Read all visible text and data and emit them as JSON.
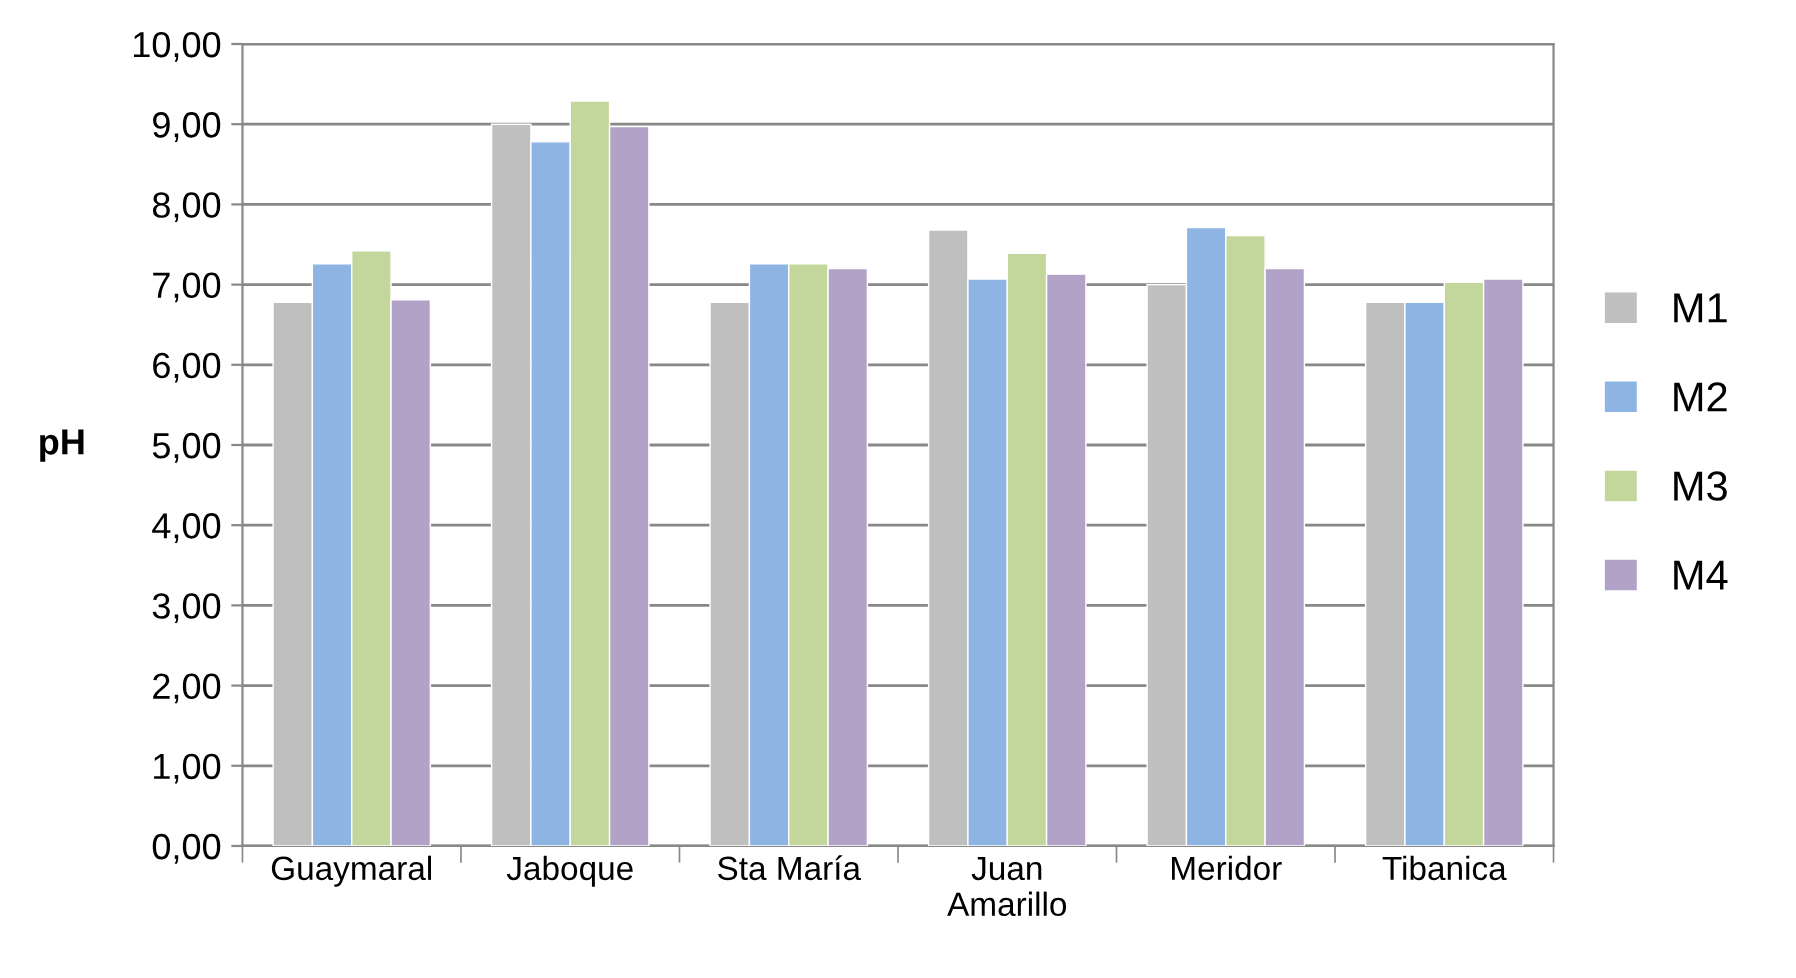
{
  "chart_data": {
    "type": "bar",
    "ylabel": "pH",
    "categories": [
      "Guaymaral",
      "Jaboque",
      "Sta María",
      "Juan Amarillo",
      "Meridor",
      "Tibanica"
    ],
    "series": [
      {
        "name": "M1",
        "color": "#bfbfbf",
        "values": [
          6.78,
          9.0,
          6.78,
          7.68,
          7.0,
          6.78
        ]
      },
      {
        "name": "M2",
        "color": "#8eb4e3",
        "values": [
          7.26,
          8.78,
          7.26,
          7.07,
          7.71,
          6.78
        ]
      },
      {
        "name": "M3",
        "color": "#c3d69b",
        "values": [
          7.42,
          9.29,
          7.26,
          7.39,
          7.61,
          7.03
        ]
      },
      {
        "name": "M4",
        "color": "#b3a2c7",
        "values": [
          6.81,
          8.97,
          7.2,
          7.13,
          7.2,
          7.07
        ]
      }
    ],
    "ylim": [
      0,
      10
    ],
    "yticks": [
      {
        "value": 0,
        "label": "0,00"
      },
      {
        "value": 1,
        "label": "1,00"
      },
      {
        "value": 2,
        "label": "2,00"
      },
      {
        "value": 3,
        "label": "3,00"
      },
      {
        "value": 4,
        "label": "4,00"
      },
      {
        "value": 5,
        "label": "5,00"
      },
      {
        "value": 6,
        "label": "6,00"
      },
      {
        "value": 7,
        "label": "7,00"
      },
      {
        "value": 8,
        "label": "8,00"
      },
      {
        "value": 9,
        "label": "9,00"
      },
      {
        "value": 10,
        "label": "10,00"
      }
    ],
    "grid": "y",
    "legend": "right"
  }
}
